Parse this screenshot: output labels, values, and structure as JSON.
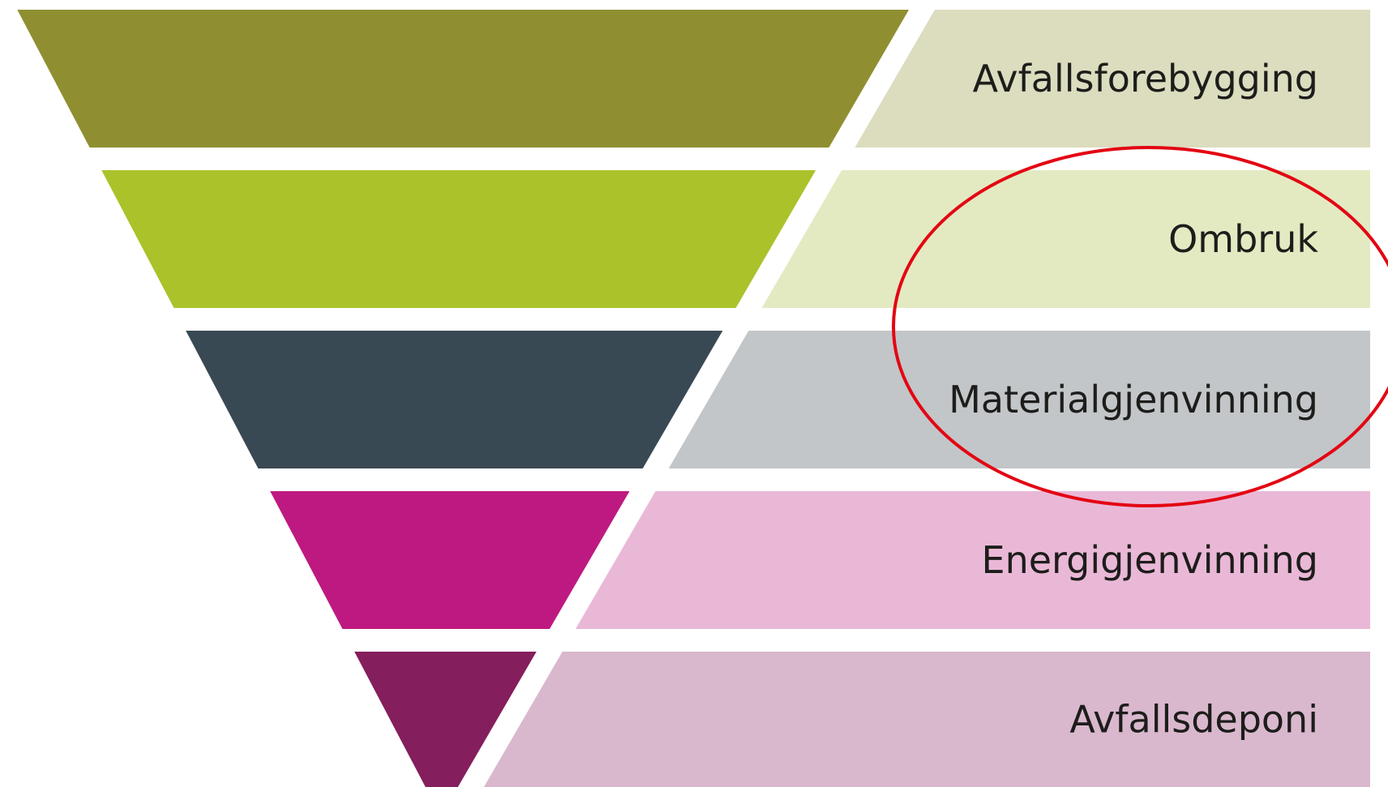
{
  "diagram": {
    "levels": [
      {
        "label": "Avfallsforebygging",
        "color": "#8f8f31",
        "band_color": "#dcdcbf"
      },
      {
        "label": "Ombruk",
        "color": "#abc22a",
        "band_color": "#e3eac2"
      },
      {
        "label": "Materialgjenvinning",
        "color": "#394953",
        "band_color": "#c2c6c8"
      },
      {
        "label": "Energigjenvinning",
        "color": "#be1980",
        "band_color": "#eab8d7"
      },
      {
        "label": "Avfallsdeponi",
        "color": "#851e5c",
        "band_color": "#d9b8cd"
      }
    ],
    "highlight": {
      "shape": "ellipse",
      "color": "#e30613",
      "encircles": [
        "Ombruk",
        "Materialgjenvinning"
      ]
    }
  }
}
